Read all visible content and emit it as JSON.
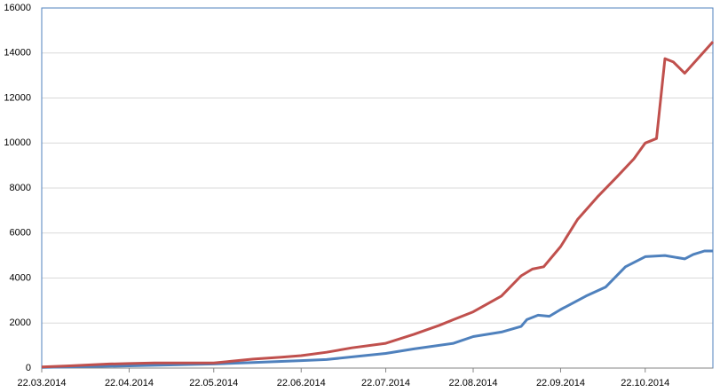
{
  "chart_data": {
    "type": "line",
    "xlim": [
      "22.03.2014",
      "15.11.2014"
    ],
    "xticks": [
      "22.03.2014",
      "22.04.2014",
      "22.05.2014",
      "22.06.2014",
      "22.07.2014",
      "22.08.2014",
      "22.09.2014",
      "22.10.2014"
    ],
    "ylim": [
      0,
      16000
    ],
    "yticks": [
      0,
      2000,
      4000,
      6000,
      8000,
      10000,
      12000,
      14000,
      16000
    ],
    "grid": true,
    "series": [
      {
        "color": "#c0504d",
        "x": [
          "22.03.2014",
          "01.04.2014",
          "15.04.2014",
          "22.04.2014",
          "01.05.2014",
          "15.05.2014",
          "22.05.2014",
          "28.05.2014",
          "05.06.2014",
          "15.06.2014",
          "22.06.2014",
          "01.07.2014",
          "10.07.2014",
          "22.07.2014",
          "01.08.2014",
          "10.08.2014",
          "15.08.2014",
          "22.08.2014",
          "01.09.2014",
          "08.09.2014",
          "12.09.2014",
          "16.09.2014",
          "22.09.2014",
          "28.09.2014",
          "05.10.2014",
          "12.10.2014",
          "18.10.2014",
          "22.10.2014",
          "26.10.2014",
          "29.10.2014",
          "01.11.2014",
          "05.11.2014",
          "15.11.2014"
        ],
        "values": [
          50,
          100,
          180,
          200,
          230,
          230,
          230,
          300,
          400,
          480,
          550,
          700,
          900,
          1100,
          1500,
          1900,
          2150,
          2500,
          3200,
          4100,
          4400,
          4500,
          5400,
          6600,
          7600,
          8500,
          9300,
          10000,
          10200,
          13750,
          13600,
          13100,
          14500
        ]
      },
      {
        "color": "#4f81bd",
        "x": [
          "22.03.2014",
          "22.04.2014",
          "22.05.2014",
          "05.06.2014",
          "22.06.2014",
          "01.07.2014",
          "22.07.2014",
          "01.08.2014",
          "15.08.2014",
          "22.08.2014",
          "01.09.2014",
          "08.09.2014",
          "10.09.2014",
          "14.09.2014",
          "18.09.2014",
          "22.09.2014",
          "01.10.2014",
          "08.10.2014",
          "15.10.2014",
          "22.10.2014",
          "29.10.2014",
          "05.11.2014",
          "08.11.2014",
          "12.11.2014",
          "15.11.2014"
        ],
        "values": [
          30,
          100,
          180,
          250,
          330,
          380,
          650,
          850,
          1100,
          1400,
          1600,
          1850,
          2150,
          2350,
          2300,
          2600,
          3200,
          3600,
          4500,
          4950,
          5000,
          4850,
          5050,
          5200,
          5200
        ]
      }
    ]
  }
}
